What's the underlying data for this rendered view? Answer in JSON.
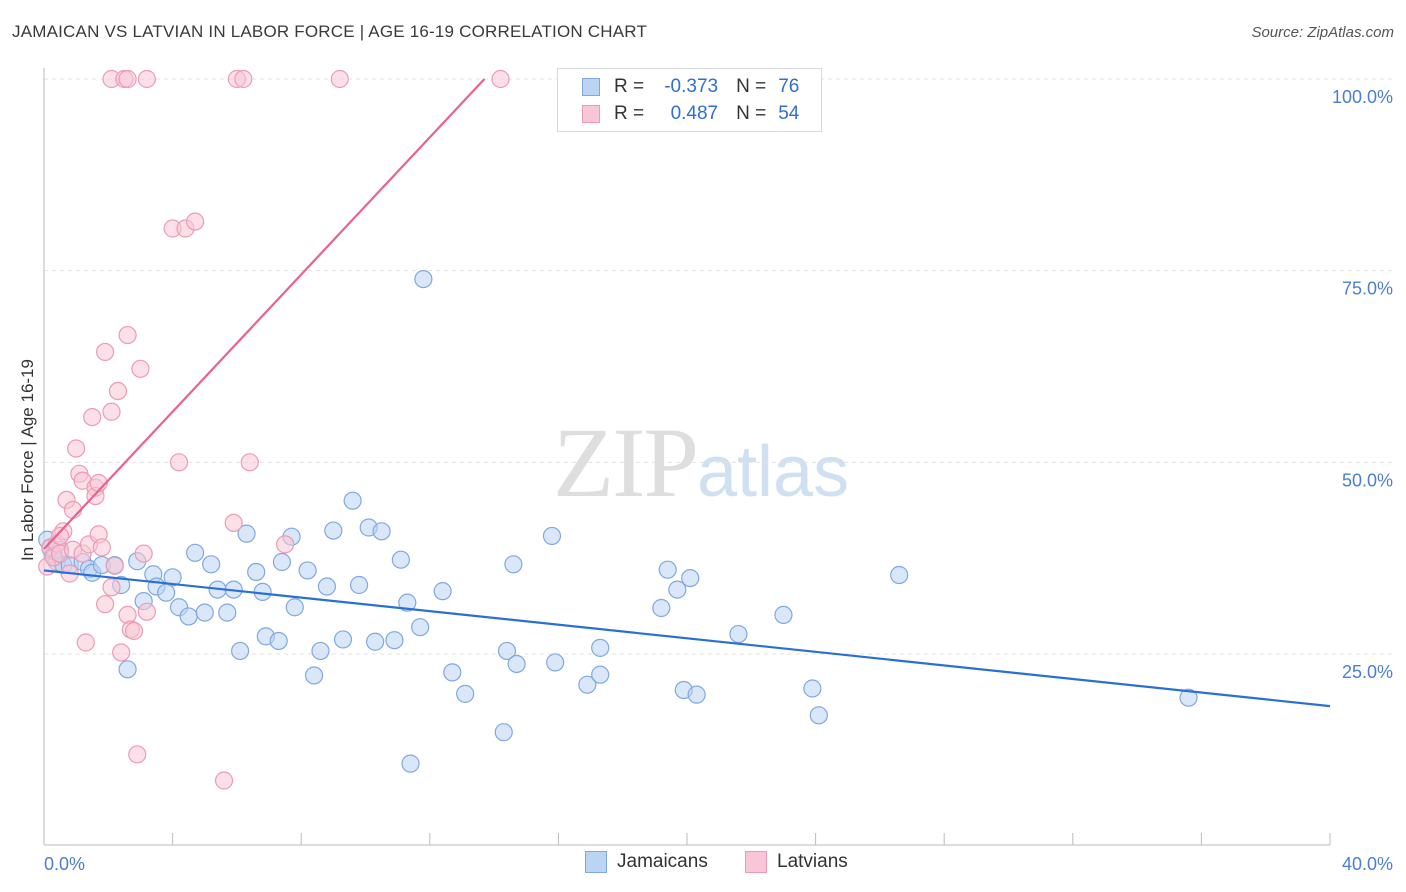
{
  "title": "JAMAICAN VS LATVIAN IN LABOR FORCE | AGE 16-19 CORRELATION CHART",
  "source": "Source: ZipAtlas.com",
  "watermark": {
    "zip": "ZIP",
    "atlas": "atlas"
  },
  "legend": {
    "r_label": "R =",
    "n_label": "N =",
    "jamaicans": {
      "r": "-0.373",
      "n": "76"
    },
    "latvians": {
      "r": "0.487",
      "n": "54"
    }
  },
  "bottom_legend": {
    "jamaicans": "Jamaicans",
    "latvians": "Latvians"
  },
  "colors": {
    "jamaicans_fill": "#bcd4f4",
    "jamaicans_stroke": "#7fa8e0",
    "jamaicans_line": "#2a6fd4",
    "latvians_fill": "#f8c6d6",
    "latvians_stroke": "#ee9ab6",
    "latvians_line": "#e8628e",
    "tick_text": "#4a7fd0",
    "grid": "#e2e2e2"
  },
  "chart_data": {
    "type": "scatter",
    "title": "JAMAICAN VS LATVIAN IN LABOR FORCE | AGE 16-19 CORRELATION CHART",
    "xlabel": "",
    "ylabel": "In Labor Force | Age 16-19",
    "xlim": [
      0,
      40
    ],
    "ylim": [
      0,
      105
    ],
    "x_tick_labels": [
      {
        "value": 0,
        "label": "0.0%"
      },
      {
        "value": 40,
        "label": "40.0%"
      }
    ],
    "y_tick_labels": [
      {
        "value": 25,
        "label": "25.0%"
      },
      {
        "value": 50,
        "label": "50.0%"
      },
      {
        "value": 75,
        "label": "75.0%"
      },
      {
        "value": 100,
        "label": "100.0%"
      }
    ],
    "grid": "horizontal dashed",
    "series": [
      {
        "name": "Jamaicans",
        "trend": {
          "x": [
            0,
            40
          ],
          "y": [
            35.9,
            18.2
          ]
        },
        "points": [
          [
            0.1,
            39.9
          ],
          [
            0.2,
            38.8
          ],
          [
            0.3,
            37.9
          ],
          [
            0.4,
            37.0
          ],
          [
            0.5,
            38.6
          ],
          [
            0.6,
            36.6
          ],
          [
            0.8,
            36.6
          ],
          [
            1.2,
            37.0
          ],
          [
            1.4,
            36.1
          ],
          [
            1.5,
            35.6
          ],
          [
            1.8,
            36.6
          ],
          [
            2.2,
            36.6
          ],
          [
            2.4,
            34.0
          ],
          [
            2.6,
            23.0
          ],
          [
            2.9,
            37.1
          ],
          [
            3.1,
            31.9
          ],
          [
            3.4,
            35.4
          ],
          [
            3.5,
            33.8
          ],
          [
            3.8,
            33.0
          ],
          [
            4.0,
            35.0
          ],
          [
            4.2,
            31.1
          ],
          [
            4.5,
            29.9
          ],
          [
            4.7,
            38.2
          ],
          [
            5.0,
            30.4
          ],
          [
            5.2,
            36.7
          ],
          [
            5.4,
            33.4
          ],
          [
            5.7,
            30.4
          ],
          [
            5.9,
            33.4
          ],
          [
            6.1,
            25.4
          ],
          [
            6.3,
            40.7
          ],
          [
            6.6,
            35.7
          ],
          [
            6.8,
            33.1
          ],
          [
            6.9,
            27.3
          ],
          [
            7.3,
            26.7
          ],
          [
            7.4,
            37.0
          ],
          [
            7.7,
            40.3
          ],
          [
            7.8,
            31.1
          ],
          [
            8.2,
            35.9
          ],
          [
            8.4,
            22.2
          ],
          [
            8.6,
            25.4
          ],
          [
            8.8,
            33.8
          ],
          [
            9.0,
            41.1
          ],
          [
            9.3,
            26.9
          ],
          [
            9.6,
            45.0
          ],
          [
            9.8,
            34.0
          ],
          [
            10.1,
            41.5
          ],
          [
            10.3,
            26.6
          ],
          [
            10.5,
            41.0
          ],
          [
            10.9,
            26.8
          ],
          [
            11.1,
            37.3
          ],
          [
            11.3,
            31.7
          ],
          [
            11.4,
            10.7
          ],
          [
            11.7,
            28.5
          ],
          [
            12.4,
            33.2
          ],
          [
            12.7,
            22.6
          ],
          [
            13.1,
            19.8
          ],
          [
            14.3,
            14.8
          ],
          [
            14.4,
            25.4
          ],
          [
            14.6,
            36.7
          ],
          [
            14.7,
            23.7
          ],
          [
            15.8,
            40.4
          ],
          [
            15.9,
            23.9
          ],
          [
            16.9,
            21.0
          ],
          [
            17.3,
            25.8
          ],
          [
            17.3,
            22.3
          ],
          [
            19.2,
            31.0
          ],
          [
            19.4,
            36.0
          ],
          [
            19.7,
            33.4
          ],
          [
            19.9,
            20.3
          ],
          [
            20.1,
            34.9
          ],
          [
            20.3,
            19.7
          ],
          [
            21.6,
            27.6
          ],
          [
            23.0,
            30.1
          ],
          [
            23.9,
            20.5
          ],
          [
            24.1,
            17.0
          ],
          [
            26.6,
            35.3
          ],
          [
            35.6,
            19.3
          ],
          [
            11.8,
            73.9
          ]
        ]
      },
      {
        "name": "Latvians",
        "trend": {
          "x": [
            0,
            13.7
          ],
          "y": [
            38.7,
            100
          ]
        },
        "points": [
          [
            0.1,
            36.4
          ],
          [
            0.2,
            38.9
          ],
          [
            0.3,
            37.6
          ],
          [
            0.4,
            39.4
          ],
          [
            0.5,
            38.1
          ],
          [
            0.6,
            41.0
          ],
          [
            0.7,
            45.1
          ],
          [
            0.8,
            35.5
          ],
          [
            0.9,
            38.6
          ],
          [
            0.9,
            43.8
          ],
          [
            1.0,
            51.8
          ],
          [
            1.1,
            48.5
          ],
          [
            1.2,
            47.6
          ],
          [
            1.2,
            38.1
          ],
          [
            1.3,
            26.5
          ],
          [
            1.4,
            39.3
          ],
          [
            1.5,
            55.9
          ],
          [
            1.6,
            46.7
          ],
          [
            1.6,
            45.6
          ],
          [
            1.7,
            47.3
          ],
          [
            1.7,
            40.6
          ],
          [
            1.8,
            38.9
          ],
          [
            1.9,
            31.5
          ],
          [
            1.9,
            64.4
          ],
          [
            2.1,
            56.6
          ],
          [
            2.1,
            33.7
          ],
          [
            2.2,
            36.5
          ],
          [
            2.3,
            59.3
          ],
          [
            2.4,
            25.2
          ],
          [
            2.6,
            66.6
          ],
          [
            2.6,
            30.1
          ],
          [
            2.7,
            28.2
          ],
          [
            2.8,
            28.0
          ],
          [
            2.9,
            11.9
          ],
          [
            3.0,
            62.2
          ],
          [
            3.1,
            38.1
          ],
          [
            3.2,
            30.5
          ],
          [
            2.1,
            100
          ],
          [
            2.5,
            100
          ],
          [
            2.6,
            100
          ],
          [
            3.2,
            100
          ],
          [
            6.0,
            100
          ],
          [
            6.2,
            100
          ],
          [
            9.2,
            100
          ],
          [
            14.2,
            100
          ],
          [
            4.0,
            80.5
          ],
          [
            4.4,
            80.5
          ],
          [
            4.7,
            81.4
          ],
          [
            4.2,
            50.0
          ],
          [
            6.4,
            50.0
          ],
          [
            5.9,
            42.1
          ],
          [
            5.6,
            8.5
          ],
          [
            7.5,
            39.3
          ],
          [
            0.5,
            40.4
          ]
        ]
      }
    ]
  }
}
